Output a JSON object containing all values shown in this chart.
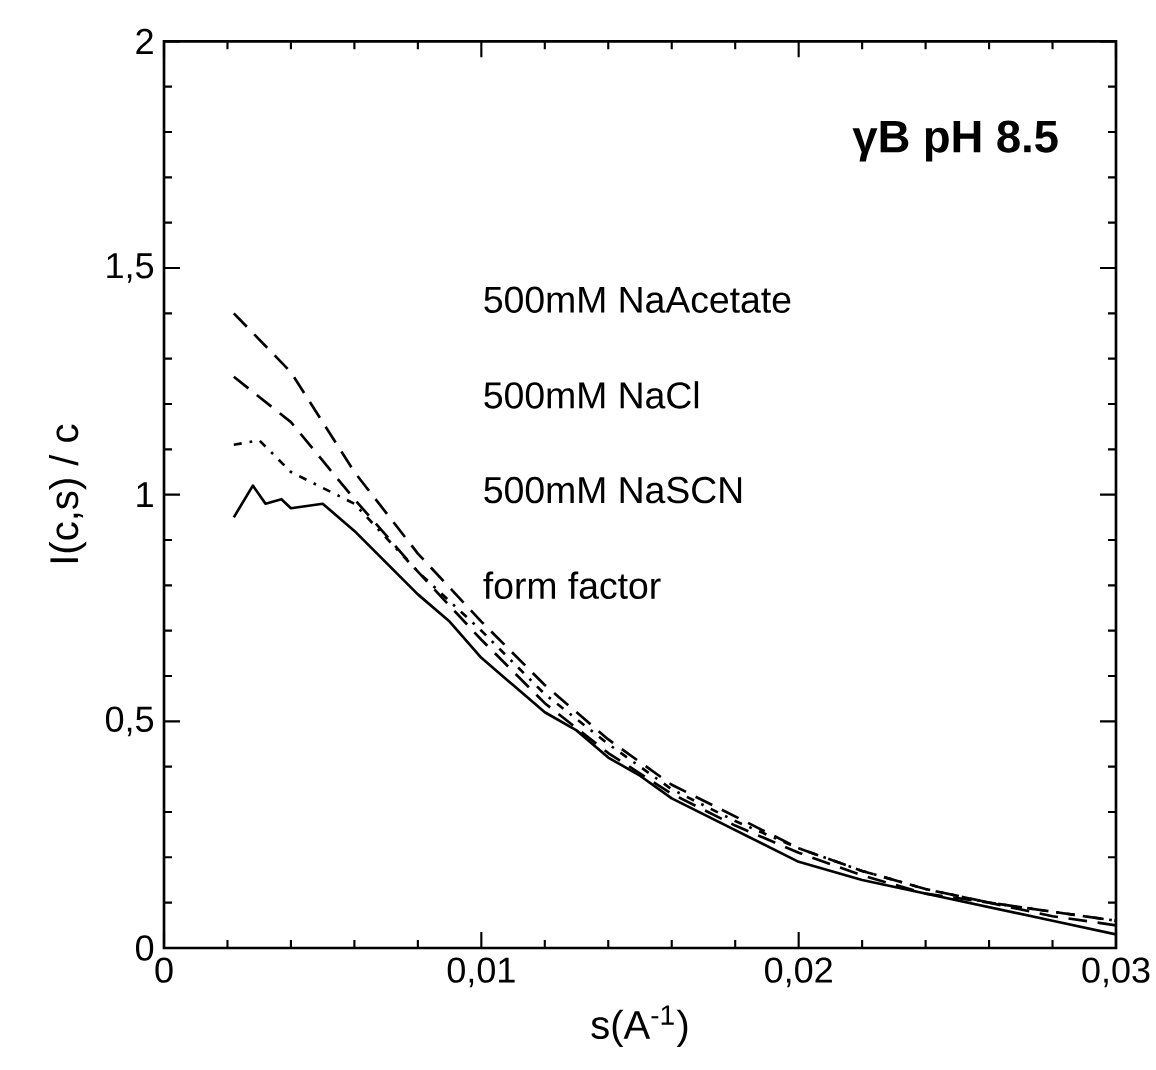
{
  "chart_data": {
    "type": "line",
    "title": "γB   pH 8.5",
    "xlabel": "s(A$^{-1}$)",
    "ylabel": "I(c,s) / c",
    "xlim": [
      0,
      0.03
    ],
    "ylim": [
      0,
      2
    ],
    "xticks": [
      0,
      {
        "value": 0.01,
        "label": "0,01"
      },
      {
        "value": 0.02,
        "label": "0,02"
      },
      {
        "value": 0.03,
        "label": "0,03"
      }
    ],
    "yticks": [
      0,
      {
        "value": 0.5,
        "label": "0,5"
      },
      1,
      {
        "value": 1.5,
        "label": "1,5"
      },
      2
    ],
    "grid": false,
    "marker": "none",
    "annotations": [
      "500mM NaAcetate",
      "500mM NaCl",
      "500mM NaSCN",
      "form factor"
    ],
    "series": [
      {
        "color": "#000000",
        "line_style": "dashed",
        "x": [
          0.0022,
          0.004,
          0.006,
          0.008,
          0.01,
          0.012,
          0.014,
          0.016,
          0.018,
          0.02,
          0.022,
          0.024,
          0.026,
          0.028,
          0.03
        ],
        "values": [
          1.4,
          1.27,
          1.05,
          0.87,
          0.72,
          0.58,
          0.46,
          0.36,
          0.29,
          0.22,
          0.17,
          0.13,
          0.1,
          0.08,
          0.06
        ]
      },
      {
        "color": "#000000",
        "line_style": "dashed",
        "x": [
          0.0022,
          0.004,
          0.006,
          0.008,
          0.01,
          0.012,
          0.014,
          0.016,
          0.018,
          0.02,
          0.022,
          0.024,
          0.026,
          0.028,
          0.03
        ],
        "values": [
          1.26,
          1.16,
          0.99,
          0.83,
          0.68,
          0.54,
          0.43,
          0.34,
          0.27,
          0.21,
          0.16,
          0.12,
          0.1,
          0.07,
          0.05
        ]
      },
      {
        "color": "#000000",
        "line_style": "dotted",
        "x": [
          0.0022,
          0.003,
          0.004,
          0.006,
          0.008,
          0.01,
          0.012,
          0.014,
          0.016,
          0.018,
          0.02,
          0.022,
          0.024,
          0.026,
          0.028,
          0.03
        ],
        "values": [
          1.11,
          1.12,
          1.05,
          0.98,
          0.83,
          0.7,
          0.56,
          0.45,
          0.35,
          0.28,
          0.22,
          0.17,
          0.13,
          0.1,
          0.08,
          0.06
        ]
      },
      {
        "color": "#000000",
        "line_style": "solid",
        "x": [
          0.0022,
          0.0028,
          0.0032,
          0.0037,
          0.004,
          0.005,
          0.006,
          0.007,
          0.008,
          0.009,
          0.01,
          0.011,
          0.012,
          0.013,
          0.014,
          0.015,
          0.016,
          0.018,
          0.02,
          0.022,
          0.024,
          0.026,
          0.028,
          0.03
        ],
        "values": [
          0.95,
          1.02,
          0.98,
          0.99,
          0.97,
          0.98,
          0.92,
          0.85,
          0.78,
          0.72,
          0.64,
          0.58,
          0.52,
          0.48,
          0.42,
          0.38,
          0.33,
          0.26,
          0.19,
          0.15,
          0.12,
          0.09,
          0.06,
          0.03
        ]
      }
    ]
  }
}
